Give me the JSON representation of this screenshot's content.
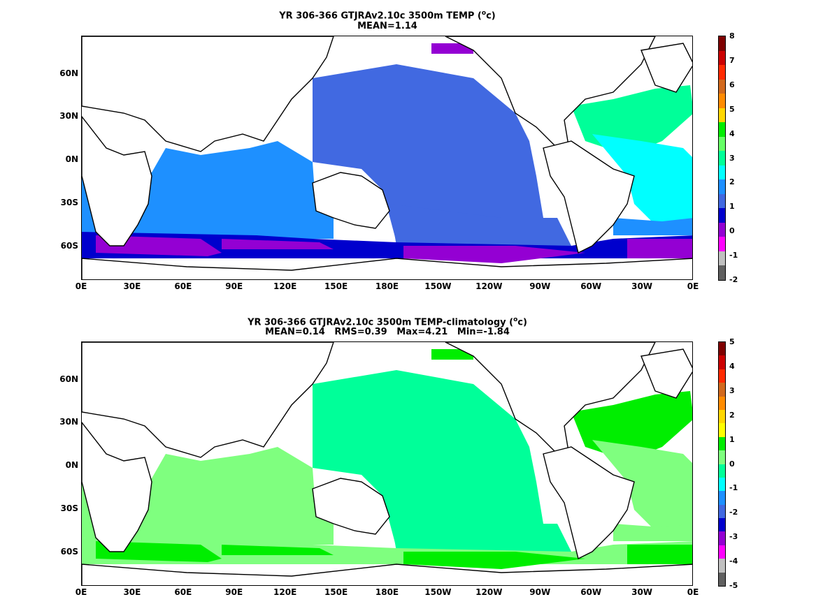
{
  "panels": [
    {
      "title_prefix": "YR 306-366 GTJRAv2.10c 3500m TEMP (",
      "title_unit_sup": "o",
      "title_suffix": "c)",
      "subtitle": "MEAN=1.14",
      "colorbar": {
        "ticks": [
          "8",
          "7",
          "6",
          "5",
          "4",
          "3",
          "2",
          "1",
          "0",
          "-1",
          "-2"
        ],
        "colors": [
          "#7f0000",
          "#cc0000",
          "#ff2a00",
          "#d2691e",
          "#ff8c00",
          "#ffd700",
          "#00ee00",
          "#66ff66",
          "#00ff99",
          "#00ffff",
          "#1e90ff",
          "#4169e1",
          "#0000cd",
          "#9400d3",
          "#ff00ff",
          "#c0c0c0",
          "#606060"
        ]
      },
      "map_colors": {
        "pacific": "#4169e1",
        "indian": "#1e90ff",
        "atlantic_n": "#00ff99",
        "atlantic_c": "#00ffff",
        "atlantic_s": "#1e90ff",
        "southern": "#9400d3",
        "southern2": "#0000cd"
      }
    },
    {
      "title_prefix": "YR 306-366 GTJRAv2.10c 3500m TEMP-climatology (",
      "title_unit_sup": "o",
      "title_suffix": "c)",
      "subtitle": "MEAN=0.14   RMS=0.39   Max=4.21   Min=-1.84",
      "colorbar": {
        "ticks": [
          "5",
          "4",
          "3",
          "2",
          "1",
          "0",
          "-1",
          "-2",
          "-3",
          "-4",
          "-5"
        ],
        "colors": [
          "#7f0000",
          "#cc0000",
          "#ff2a00",
          "#d2691e",
          "#ff8c00",
          "#ffd700",
          "#ffff00",
          "#00ee00",
          "#7fff7f",
          "#00ff99",
          "#00ffff",
          "#1e90ff",
          "#4169e1",
          "#0000cd",
          "#9400d3",
          "#ff00ff",
          "#c0c0c0",
          "#606060"
        ]
      },
      "map_colors": {
        "pacific": "#00ff99",
        "indian": "#7fff7f",
        "atlantic_n": "#00ee00",
        "atlantic_c": "#7fff7f",
        "atlantic_s": "#7fff7f",
        "southern": "#00ee00",
        "southern2": "#7fff7f"
      }
    }
  ],
  "lat_labels": [
    "60N",
    "30N",
    "0N",
    "30S",
    "60S"
  ],
  "lon_labels": [
    "0E",
    "30E",
    "60E",
    "90E",
    "120E",
    "150E",
    "180E",
    "150W",
    "120W",
    "90W",
    "60W",
    "30W",
    "0E"
  ]
}
